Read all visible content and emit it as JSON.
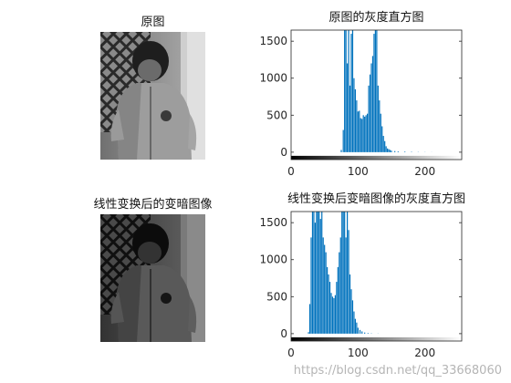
{
  "panels": {
    "original_image_title": "原图",
    "darkened_image_title": "线性变换后的变暗图像"
  },
  "watermark": "https://blog.csdn.net/qq_33668060",
  "colors": {
    "bar": "#0072bd",
    "axis": "#262626"
  },
  "chart_data": [
    {
      "type": "bar",
      "title": "原图的灰度直方图",
      "xlim": [
        0,
        255
      ],
      "ylim": [
        -100,
        1650
      ],
      "xticks": [
        0,
        100,
        200
      ],
      "yticks": [
        0,
        500,
        1000,
        1500
      ],
      "colorbar": "grayscale 0-255",
      "x": [
        75,
        78,
        80,
        82,
        84,
        86,
        88,
        90,
        92,
        94,
        96,
        98,
        100,
        102,
        104,
        106,
        108,
        110,
        112,
        114,
        116,
        118,
        120,
        122,
        124,
        126,
        128,
        130,
        132,
        134,
        136,
        138,
        140,
        142,
        144,
        146,
        148,
        150,
        155,
        160,
        170,
        180,
        190,
        200,
        210
      ],
      "values": [
        30,
        300,
        1650,
        1650,
        1200,
        1650,
        900,
        1600,
        1650,
        1000,
        850,
        700,
        550,
        560,
        460,
        450,
        500,
        480,
        500,
        520,
        900,
        1050,
        1200,
        1300,
        1600,
        1650,
        1650,
        900,
        700,
        520,
        350,
        220,
        150,
        80,
        50,
        40,
        30,
        20,
        15,
        10,
        8,
        5,
        3,
        2,
        1
      ]
    },
    {
      "type": "bar",
      "title": "线性变换后变暗图像的灰度直方图",
      "xlim": [
        0,
        255
      ],
      "ylim": [
        -100,
        1650
      ],
      "xticks": [
        0,
        100,
        200
      ],
      "yticks": [
        0,
        500,
        1000,
        1500
      ],
      "colorbar": "grayscale 0-255",
      "x": [
        26,
        28,
        30,
        32,
        34,
        36,
        38,
        40,
        42,
        44,
        46,
        48,
        50,
        52,
        54,
        56,
        58,
        60,
        62,
        64,
        66,
        68,
        70,
        72,
        74,
        76,
        78,
        80,
        82,
        84,
        86,
        88,
        90,
        92,
        94,
        96,
        98,
        100,
        103,
        106,
        110,
        115,
        120,
        130
      ],
      "values": [
        20,
        400,
        1300,
        1650,
        1650,
        1500,
        1650,
        1650,
        1650,
        1550,
        1650,
        1300,
        1200,
        1100,
        900,
        800,
        700,
        550,
        500,
        480,
        520,
        700,
        900,
        1100,
        1300,
        1650,
        1650,
        1650,
        1300,
        1650,
        1400,
        800,
        600,
        450,
        300,
        200,
        150,
        80,
        50,
        30,
        15,
        8,
        4,
        2
      ]
    }
  ]
}
